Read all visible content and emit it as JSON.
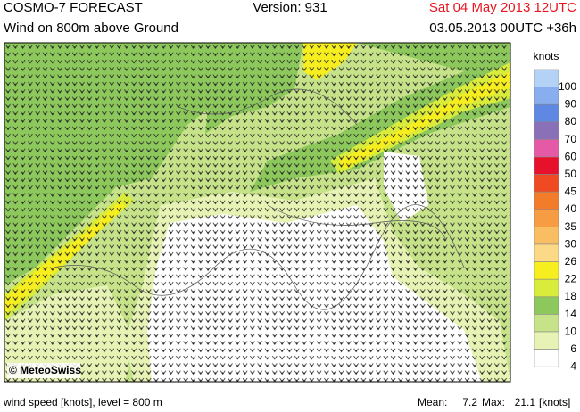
{
  "header": {
    "title": "COSMO-7 FORECAST",
    "version": "Version: 931",
    "valid_time": "Sat 04 May 2013 12UTC",
    "subtitle": "Wind on 800m above Ground",
    "run": "03.05.2013 00UTC +36h"
  },
  "map": {
    "copyright": "© MeteoSwiss"
  },
  "legend": {
    "title": "knots",
    "items": [
      {
        "value": 100,
        "color": "#b4d2f6"
      },
      {
        "value": 90,
        "color": "#88aef0"
      },
      {
        "value": 80,
        "color": "#5f88e2"
      },
      {
        "value": 70,
        "color": "#8a70b6"
      },
      {
        "value": 60,
        "color": "#e55aa6"
      },
      {
        "value": 50,
        "color": "#e8112b"
      },
      {
        "value": 45,
        "color": "#ef4a22"
      },
      {
        "value": 40,
        "color": "#f27c2a"
      },
      {
        "value": 35,
        "color": "#f69c42"
      },
      {
        "value": 30,
        "color": "#f9bd62"
      },
      {
        "value": 26,
        "color": "#fcd986"
      },
      {
        "value": 22,
        "color": "#f6ee1e"
      },
      {
        "value": 18,
        "color": "#d9ec3c"
      },
      {
        "value": 14,
        "color": "#8dc85c"
      },
      {
        "value": 10,
        "color": "#c6e38a"
      },
      {
        "value": 6,
        "color": "#e6f3b4"
      },
      {
        "value": 4,
        "color": "#ffffff"
      }
    ]
  },
  "footer": {
    "description": "wind speed [knots], level = 800 m",
    "mean_label": "Mean:",
    "mean": 7.2,
    "max_label": "Max:",
    "max": 21.1,
    "unit": "[knots]"
  }
}
